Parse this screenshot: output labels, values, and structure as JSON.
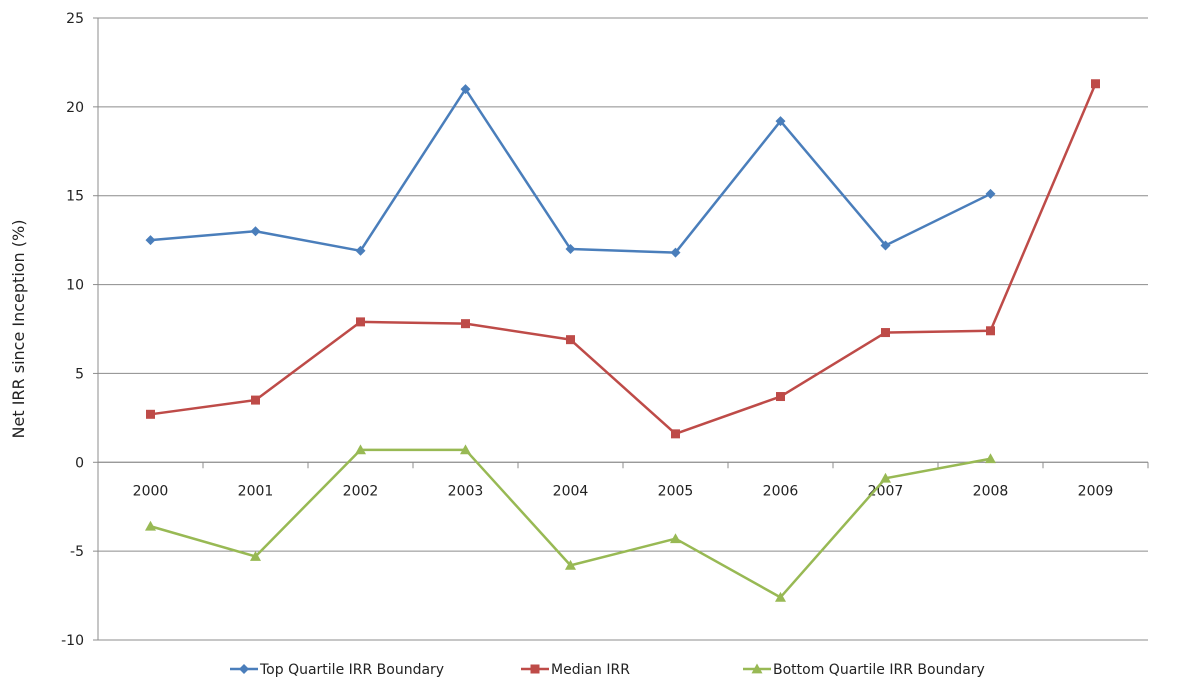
{
  "chart_data": {
    "type": "line",
    "title": "",
    "xlabel": "",
    "ylabel": "Net IRR since Inception (%)",
    "ylim": [
      -10,
      25
    ],
    "yticks": [
      25,
      20,
      15,
      10,
      5,
      0,
      -5,
      -10
    ],
    "categories": [
      "2000",
      "2001",
      "2002",
      "2003",
      "2004",
      "2005",
      "2006",
      "2007",
      "2008",
      "2009"
    ],
    "grid": true,
    "legend_position": "bottom",
    "series": [
      {
        "name": "Top Quartile IRR Boundary",
        "color": "#4a7ebb",
        "marker": "diamond",
        "values": [
          12.5,
          13.0,
          11.9,
          21.0,
          12.0,
          11.8,
          19.2,
          12.2,
          15.1,
          null
        ]
      },
      {
        "name": "Median IRR",
        "color": "#be4b48",
        "marker": "square",
        "values": [
          2.7,
          3.5,
          7.9,
          7.8,
          6.9,
          1.6,
          3.7,
          7.3,
          7.4,
          21.3
        ]
      },
      {
        "name": "Bottom Quartile IRR Boundary",
        "color": "#98b954",
        "marker": "triangle",
        "values": [
          -3.6,
          -5.3,
          0.7,
          0.7,
          -5.8,
          -4.3,
          -7.6,
          -0.9,
          0.2,
          null
        ]
      }
    ]
  }
}
